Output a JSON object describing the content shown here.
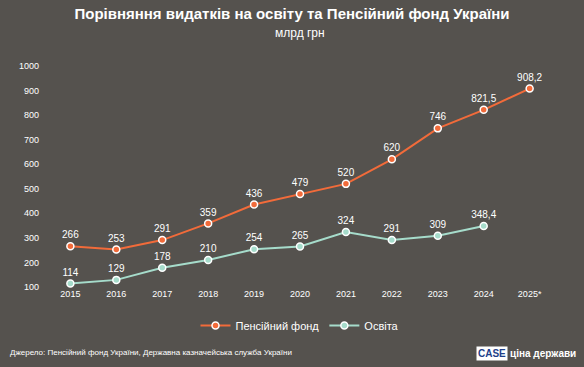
{
  "chart_data": {
    "type": "line",
    "title": "Порівняння видатків на освіту та Пенсійний фонд України",
    "subtitle": "млрд грн",
    "categories": [
      "2015",
      "2016",
      "2017",
      "2018",
      "2019",
      "2020",
      "2021",
      "2022",
      "2023",
      "2024",
      "2025*"
    ],
    "series": [
      {
        "name": "Пенсійний фонд",
        "color": "#f26b3a",
        "marker": "circle",
        "values": [
          266,
          253,
          291,
          359,
          436,
          479,
          520,
          620,
          746,
          821.5,
          908.2
        ],
        "value_labels": [
          "266",
          "253",
          "291",
          "359",
          "436",
          "479",
          "520",
          "620",
          "746",
          "821,5",
          "908,2"
        ]
      },
      {
        "name": "Освіта",
        "color": "#a6dccb",
        "marker": "circle",
        "values": [
          114,
          129,
          178,
          210,
          254,
          265,
          324,
          291,
          309,
          348.4,
          null
        ],
        "value_labels": [
          "114",
          "129",
          "178",
          "210",
          "254",
          "265",
          "324",
          "291",
          "309",
          "348,4",
          null
        ]
      }
    ],
    "ylim": [
      100,
      1000
    ],
    "yticks": [
      100,
      200,
      300,
      400,
      500,
      600,
      700,
      800,
      900,
      1000
    ],
    "grid": false,
    "legend": "bottom",
    "data_labels": true,
    "source": "Джерело: Пенсійний фонд України, Державна казначейська служба України",
    "logos": [
      "CASE",
      "ціна держави"
    ]
  }
}
